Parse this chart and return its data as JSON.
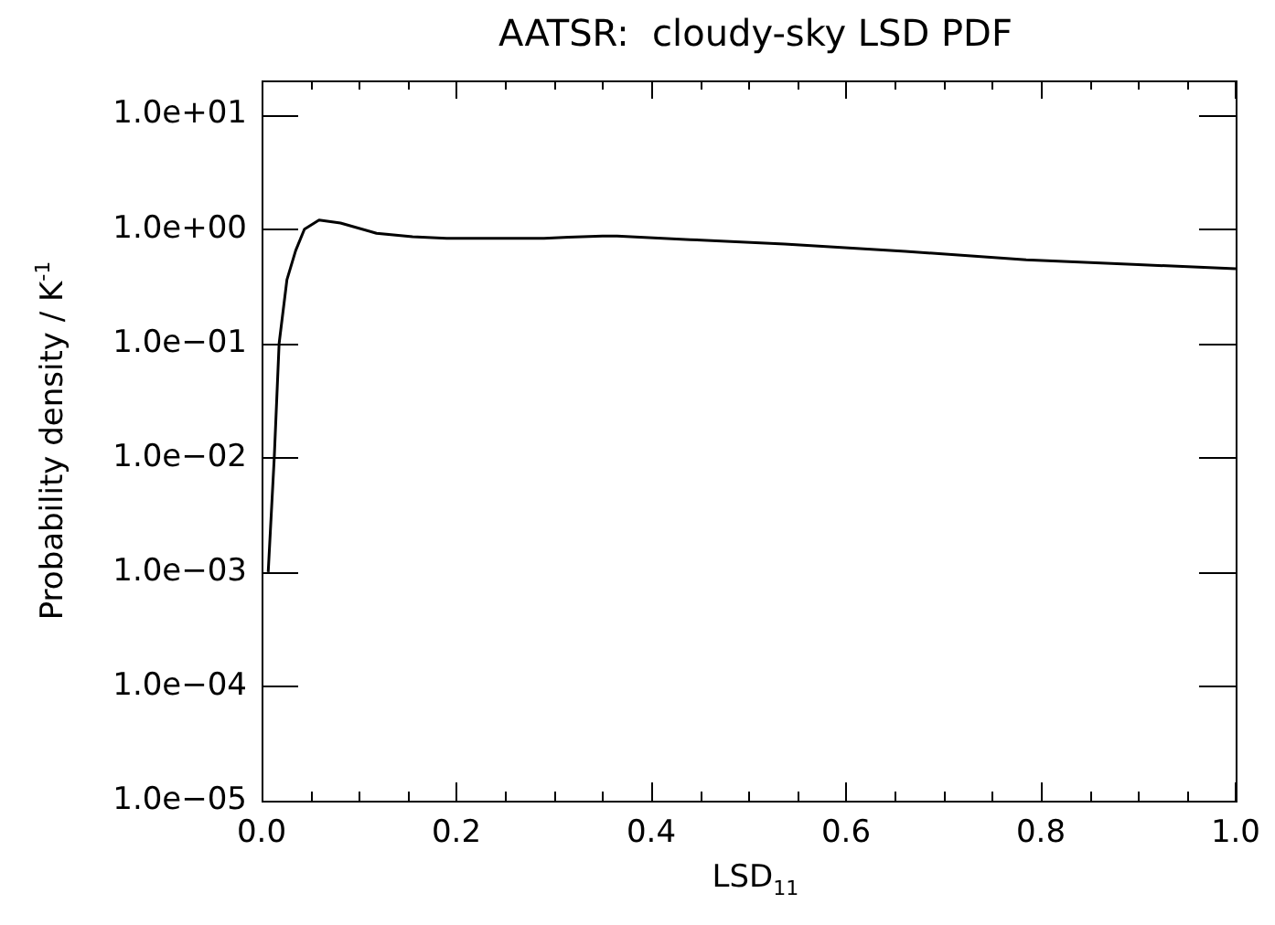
{
  "chart_data": {
    "type": "line",
    "title": "AATSR:  cloudy-sky LSD PDF",
    "xlabel": "LSD$_{11}$",
    "ylabel": "Probability density / K$^{-1}$",
    "x": [
      0.0068,
      0.013,
      0.018,
      0.026,
      0.035,
      0.044,
      0.059,
      0.081,
      0.118,
      0.155,
      0.19,
      0.25,
      0.29,
      0.315,
      0.35,
      0.365,
      0.426,
      0.44,
      0.537,
      0.661,
      0.785,
      0.9,
      1.0
    ],
    "series": [
      {
        "color": "#000000",
        "values": [
          0.001,
          0.01,
          0.1,
          0.36,
          0.65,
          1.0,
          1.2,
          1.13,
          0.92,
          0.86,
          0.83,
          0.83,
          0.83,
          0.85,
          0.87,
          0.87,
          0.82,
          0.81,
          0.74,
          0.64,
          0.54,
          0.49,
          0.45
        ]
      }
    ],
    "log": "y",
    "xlim": [
      0,
      1
    ],
    "ylim": [
      1e-05,
      20
    ],
    "xticks": [
      {
        "value": 0,
        "label": "0.0"
      },
      {
        "value": 0.05,
        "label": null
      },
      {
        "value": 0.1,
        "label": null
      },
      {
        "value": 0.15,
        "label": null
      },
      {
        "value": 0.2,
        "label": "0.2"
      },
      {
        "value": 0.25,
        "label": null
      },
      {
        "value": 0.3,
        "label": null
      },
      {
        "value": 0.35,
        "label": null
      },
      {
        "value": 0.4,
        "label": "0.4"
      },
      {
        "value": 0.45,
        "label": null
      },
      {
        "value": 0.5,
        "label": null
      },
      {
        "value": 0.55,
        "label": null
      },
      {
        "value": 0.6,
        "label": "0.6"
      },
      {
        "value": 0.65,
        "label": null
      },
      {
        "value": 0.7,
        "label": null
      },
      {
        "value": 0.75,
        "label": null
      },
      {
        "value": 0.8,
        "label": "0.8"
      },
      {
        "value": 0.85,
        "label": null
      },
      {
        "value": 0.9,
        "label": null
      },
      {
        "value": 0.95,
        "label": null
      },
      {
        "value": 1,
        "label": "1.0"
      }
    ],
    "yticks": [
      {
        "value": 1e-05,
        "label": "1.0e−05"
      },
      {
        "value": 0.0001,
        "label": "1.0e−04"
      },
      {
        "value": 0.001,
        "label": "1.0e−03"
      },
      {
        "value": 0.01,
        "label": "1.0e−02"
      },
      {
        "value": 0.1,
        "label": "1.0e−01"
      },
      {
        "value": 1,
        "label": "1.0e+00"
      },
      {
        "value": 10,
        "label": "1.0e+01"
      }
    ],
    "grid": false,
    "legend": false,
    "marker": "none",
    "line_style": "solid"
  }
}
